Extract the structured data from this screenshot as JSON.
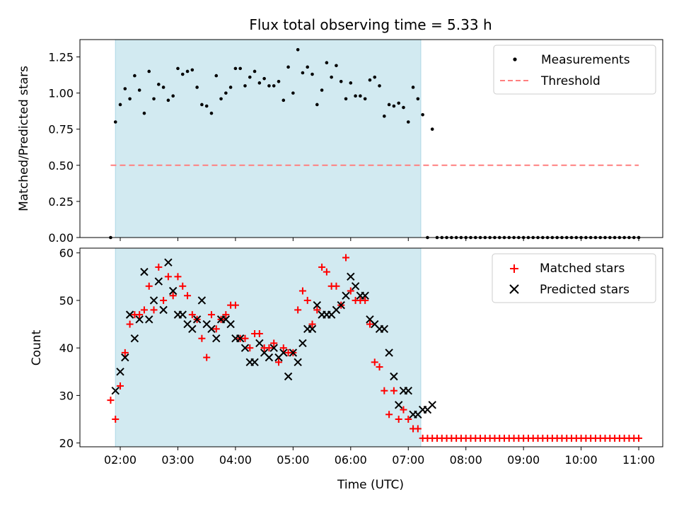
{
  "chart_data": [
    {
      "type": "scatter",
      "title": "Flux total observing time = 5.33 h",
      "xlabel": "",
      "ylabel": "Matched/Predicted stars",
      "ylim": [
        0,
        1.37
      ],
      "yticks": [
        "0.00",
        "0.25",
        "0.50",
        "0.75",
        "1.00",
        "1.25"
      ],
      "xlim": [
        "01:18",
        "11:25"
      ],
      "observing_window": [
        "01:55",
        "07:13"
      ],
      "legend_position": "upper right",
      "colors": {
        "measurements": "#000000",
        "threshold": "#ff7f7f",
        "span": "#add8e6"
      },
      "series": [
        {
          "name": "Measurements",
          "x": [
            "01:50",
            "01:55",
            "02:00",
            "02:05",
            "02:10",
            "02:15",
            "02:20",
            "02:25",
            "02:30",
            "02:35",
            "02:40",
            "02:45",
            "02:50",
            "02:55",
            "03:00",
            "03:05",
            "03:10",
            "03:15",
            "03:20",
            "03:25",
            "03:30",
            "03:35",
            "03:40",
            "03:45",
            "03:50",
            "03:55",
            "04:00",
            "04:05",
            "04:10",
            "04:15",
            "04:20",
            "04:25",
            "04:30",
            "04:35",
            "04:40",
            "04:45",
            "04:50",
            "04:55",
            "05:00",
            "05:05",
            "05:10",
            "05:15",
            "05:20",
            "05:25",
            "05:30",
            "05:35",
            "05:40",
            "05:45",
            "05:50",
            "05:55",
            "06:00",
            "06:05",
            "06:10",
            "06:15",
            "06:20",
            "06:25",
            "06:30",
            "06:35",
            "06:40",
            "06:45",
            "06:50",
            "06:55",
            "07:00",
            "07:05",
            "07:10",
            "07:15",
            "07:20",
            "07:25",
            "07:30",
            "07:35",
            "07:40",
            "07:45",
            "07:50",
            "07:55",
            "08:00",
            "08:05",
            "08:10",
            "08:15",
            "08:20",
            "08:25",
            "08:30",
            "08:35",
            "08:40",
            "08:45",
            "08:50",
            "08:55",
            "09:00",
            "09:05",
            "09:10",
            "09:15",
            "09:20",
            "09:25",
            "09:30",
            "09:35",
            "09:40",
            "09:45",
            "09:50",
            "09:55",
            "10:00",
            "10:05",
            "10:10",
            "10:15",
            "10:20",
            "10:25",
            "10:30",
            "10:35",
            "10:40",
            "10:45",
            "10:50",
            "10:55",
            "11:00"
          ],
          "y": [
            0.0,
            0.8,
            0.92,
            1.03,
            0.96,
            1.12,
            1.02,
            0.86,
            1.15,
            0.96,
            1.06,
            1.04,
            0.95,
            0.98,
            1.17,
            1.13,
            1.15,
            1.16,
            1.04,
            0.92,
            0.91,
            0.86,
            1.12,
            0.96,
            1.0,
            1.04,
            1.17,
            1.17,
            1.05,
            1.11,
            1.15,
            1.07,
            1.1,
            1.05,
            1.05,
            1.08,
            0.95,
            1.18,
            1.0,
            1.3,
            1.14,
            1.18,
            1.13,
            0.92,
            1.02,
            1.21,
            1.11,
            1.19,
            1.08,
            0.96,
            1.07,
            0.98,
            0.98,
            0.96,
            1.09,
            1.11,
            1.05,
            0.84,
            0.92,
            0.91,
            0.93,
            0.9,
            0.8,
            1.04,
            0.96,
            0.85,
            0.0,
            0.75,
            0.0,
            0.0,
            0.0,
            0.0,
            0.0,
            0.0,
            0.0,
            0.0,
            0.0,
            0.0,
            0.0,
            0.0,
            0.0,
            0.0,
            0.0,
            0.0,
            0.0,
            0.0,
            0.0,
            0.0,
            0.0,
            0.0,
            0.0,
            0.0,
            0.0,
            0.0,
            0.0,
            0.0,
            0.0,
            0.0,
            0.0,
            0.0,
            0.0,
            0.0,
            0.0,
            0.0,
            0.0,
            0.0,
            0.0,
            0.0,
            0.0,
            0.0,
            0.0
          ]
        },
        {
          "name": "Threshold",
          "x": [
            "01:50",
            "11:00"
          ],
          "y": [
            0.5,
            0.5
          ]
        }
      ]
    },
    {
      "type": "scatter",
      "xlabel": "Time (UTC)",
      "ylabel": "Count",
      "ylim": [
        19.2,
        61
      ],
      "yticks": [
        "20",
        "30",
        "40",
        "50",
        "60"
      ],
      "xticks": [
        "02:00",
        "03:00",
        "04:00",
        "05:00",
        "06:00",
        "07:00",
        "08:00",
        "09:00",
        "10:00",
        "11:00"
      ],
      "legend_position": "upper right",
      "colors": {
        "matched": "#ff0000",
        "predicted": "#000000"
      },
      "series": [
        {
          "name": "Matched stars",
          "x": [
            "01:50",
            "01:55",
            "02:00",
            "02:05",
            "02:10",
            "02:15",
            "02:20",
            "02:25",
            "02:30",
            "02:35",
            "02:40",
            "02:45",
            "02:50",
            "02:55",
            "03:00",
            "03:05",
            "03:10",
            "03:15",
            "03:20",
            "03:25",
            "03:30",
            "03:35",
            "03:40",
            "03:45",
            "03:50",
            "03:55",
            "04:00",
            "04:05",
            "04:10",
            "04:15",
            "04:20",
            "04:25",
            "04:30",
            "04:35",
            "04:40",
            "04:45",
            "04:50",
            "04:55",
            "05:00",
            "05:05",
            "05:10",
            "05:15",
            "05:20",
            "05:25",
            "05:30",
            "05:35",
            "05:40",
            "05:45",
            "05:50",
            "05:55",
            "06:00",
            "06:05",
            "06:10",
            "06:15",
            "06:20",
            "06:25",
            "06:30",
            "06:35",
            "06:40",
            "06:45",
            "06:50",
            "06:55",
            "07:00",
            "07:05",
            "07:10",
            "07:15",
            "07:20",
            "07:25",
            "07:30",
            "07:35",
            "07:40",
            "07:45",
            "07:50",
            "07:55",
            "08:00",
            "08:05",
            "08:10",
            "08:15",
            "08:20",
            "08:25",
            "08:30",
            "08:35",
            "08:40",
            "08:45",
            "08:50",
            "08:55",
            "09:00",
            "09:05",
            "09:10",
            "09:15",
            "09:20",
            "09:25",
            "09:30",
            "09:35",
            "09:40",
            "09:45",
            "09:50",
            "09:55",
            "10:00",
            "10:05",
            "10:10",
            "10:15",
            "10:20",
            "10:25",
            "10:30",
            "10:35",
            "10:40",
            "10:45",
            "10:50",
            "10:55",
            "11:00"
          ],
          "y": [
            29,
            25,
            32,
            39,
            45,
            47,
            47,
            48,
            53,
            48,
            57,
            50,
            55,
            51,
            55,
            53,
            51,
            47,
            46,
            42,
            38,
            47,
            44,
            46,
            47,
            49,
            49,
            42,
            42,
            40,
            43,
            43,
            40,
            40,
            41,
            37,
            40,
            39,
            39,
            48,
            52,
            50,
            45,
            48,
            57,
            56,
            53,
            53,
            49,
            59,
            52,
            50,
            50,
            50,
            45,
            37,
            36,
            31,
            26,
            31,
            25,
            27,
            25,
            23,
            23,
            21,
            21,
            21,
            21,
            21,
            21,
            21,
            21,
            21,
            21,
            21,
            21,
            21,
            21,
            21,
            21,
            21,
            21,
            21,
            21,
            21,
            21,
            21,
            21,
            21,
            21,
            21,
            21,
            21,
            21,
            21,
            21,
            21,
            21,
            21,
            21,
            21,
            21,
            21,
            21,
            21,
            21,
            21,
            21,
            21,
            21
          ]
        },
        {
          "name": "Predicted stars",
          "x": [
            "01:55",
            "02:00",
            "02:05",
            "02:10",
            "02:15",
            "02:20",
            "02:25",
            "02:30",
            "02:35",
            "02:40",
            "02:45",
            "02:50",
            "02:55",
            "03:00",
            "03:05",
            "03:10",
            "03:15",
            "03:20",
            "03:25",
            "03:30",
            "03:35",
            "03:40",
            "03:45",
            "03:50",
            "03:55",
            "04:00",
            "04:05",
            "04:10",
            "04:15",
            "04:20",
            "04:25",
            "04:30",
            "04:35",
            "04:40",
            "04:45",
            "04:50",
            "04:55",
            "05:00",
            "05:05",
            "05:10",
            "05:15",
            "05:20",
            "05:25",
            "05:30",
            "05:35",
            "05:40",
            "05:45",
            "05:50",
            "05:55",
            "06:00",
            "06:05",
            "06:10",
            "06:15",
            "06:20",
            "06:25",
            "06:30",
            "06:35",
            "06:40",
            "06:45",
            "06:50",
            "06:55",
            "07:00",
            "07:05",
            "07:10",
            "07:15",
            "07:20",
            "07:25"
          ],
          "y": [
            31,
            35,
            38,
            47,
            42,
            46,
            56,
            46,
            50,
            54,
            48,
            58,
            52,
            47,
            47,
            45,
            44,
            46,
            50,
            45,
            44,
            42,
            46,
            46,
            45,
            42,
            42,
            40,
            37,
            37,
            41,
            39,
            38,
            40,
            38,
            39,
            34,
            39,
            37,
            41,
            44,
            44,
            49,
            47,
            47,
            47,
            48,
            49,
            51,
            55,
            53,
            51,
            51,
            46,
            45,
            44,
            44,
            39,
            34,
            28,
            31,
            31,
            26,
            26,
            27,
            27,
            28
          ]
        }
      ]
    }
  ]
}
